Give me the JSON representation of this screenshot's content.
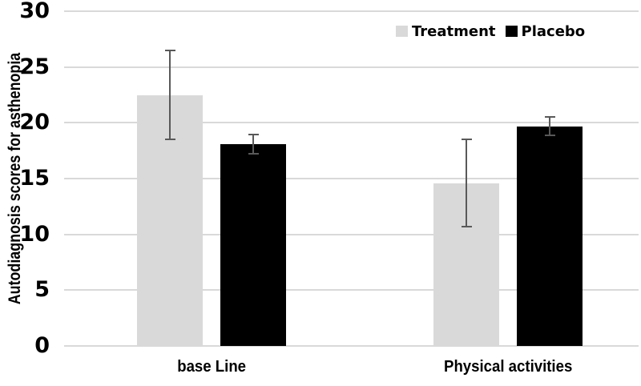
{
  "figure": {
    "background_color": "#ffffff",
    "text_color": "#000000"
  },
  "chart_data": {
    "type": "bar",
    "title": "",
    "xlabel": "",
    "ylabel": "Autodiagnosis scores for asthenopia",
    "categories": [
      "base Line",
      "Physical activities"
    ],
    "series": [
      {
        "name": "Treatment",
        "color": "#d9d9d9",
        "values": [
          22.5,
          14.6
        ],
        "errors": [
          4.0,
          3.9
        ]
      },
      {
        "name": "Placebo",
        "color": "#000000",
        "values": [
          18.1,
          19.7
        ],
        "errors": [
          0.85,
          0.8
        ]
      }
    ],
    "ylim": [
      0,
      30
    ],
    "yticks": [
      0,
      5,
      10,
      15,
      20,
      25,
      30
    ],
    "grid": "horizontal",
    "gridline_color": "#d9d9d9",
    "error_bar_color": "#595959",
    "legend_position": "top-right",
    "legend_swatch_shape": "square"
  }
}
